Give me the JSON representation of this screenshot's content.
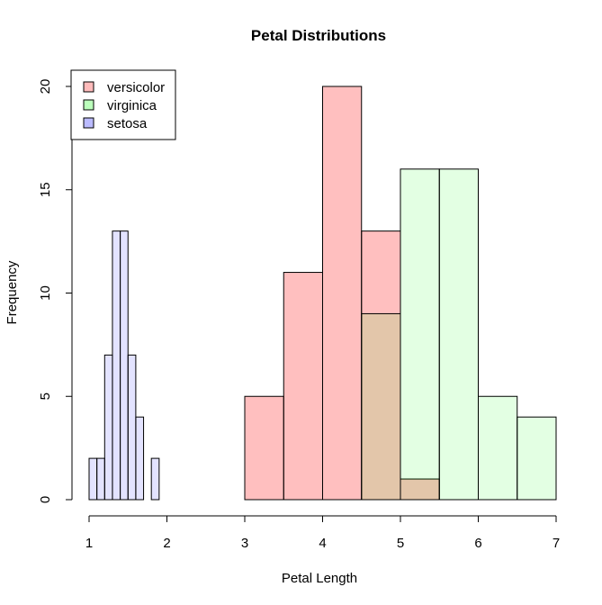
{
  "chart_data": {
    "type": "bar",
    "title": "Petal Distributions",
    "xlabel": "Petal Length",
    "ylabel": "Frequency",
    "xlim": [
      1,
      7
    ],
    "ylim": [
      0,
      20
    ],
    "x_ticks": [
      "1",
      "2",
      "3",
      "4",
      "5",
      "6",
      "7"
    ],
    "y_ticks": [
      "0",
      "5",
      "10",
      "15",
      "20"
    ],
    "grid": false,
    "legend_position": "top-left",
    "series": [
      {
        "name": "versicolor",
        "color": "#ff0000",
        "opacity": 0.25,
        "bins": [
          {
            "from": 3.0,
            "to": 3.5,
            "value": 5
          },
          {
            "from": 3.5,
            "to": 4.0,
            "value": 11
          },
          {
            "from": 4.0,
            "to": 4.5,
            "value": 20
          },
          {
            "from": 4.5,
            "to": 5.0,
            "value": 13
          },
          {
            "from": 5.0,
            "to": 5.5,
            "value": 1
          }
        ]
      },
      {
        "name": "virginica",
        "color": "#00ff00",
        "opacity": 0.11,
        "bins": [
          {
            "from": 4.5,
            "to": 5.0,
            "value": 9
          },
          {
            "from": 5.0,
            "to": 5.5,
            "value": 16
          },
          {
            "from": 5.5,
            "to": 6.0,
            "value": 16
          },
          {
            "from": 6.0,
            "to": 6.5,
            "value": 5
          },
          {
            "from": 6.5,
            "to": 7.0,
            "value": 4
          }
        ]
      },
      {
        "name": "setosa",
        "color": "#0000ff",
        "opacity": 0.11,
        "bins": [
          {
            "from": 1.0,
            "to": 1.1,
            "value": 2
          },
          {
            "from": 1.1,
            "to": 1.2,
            "value": 2
          },
          {
            "from": 1.2,
            "to": 1.3,
            "value": 7
          },
          {
            "from": 1.3,
            "to": 1.4,
            "value": 13
          },
          {
            "from": 1.4,
            "to": 1.5,
            "value": 13
          },
          {
            "from": 1.5,
            "to": 1.6,
            "value": 7
          },
          {
            "from": 1.6,
            "to": 1.7,
            "value": 4
          },
          {
            "from": 1.7,
            "to": 1.8,
            "value": 0
          },
          {
            "from": 1.8,
            "to": 1.9,
            "value": 2
          }
        ]
      }
    ],
    "legend_swatch_colors": [
      "#ffbbbb",
      "#bbffbb",
      "#bbbbff"
    ]
  }
}
